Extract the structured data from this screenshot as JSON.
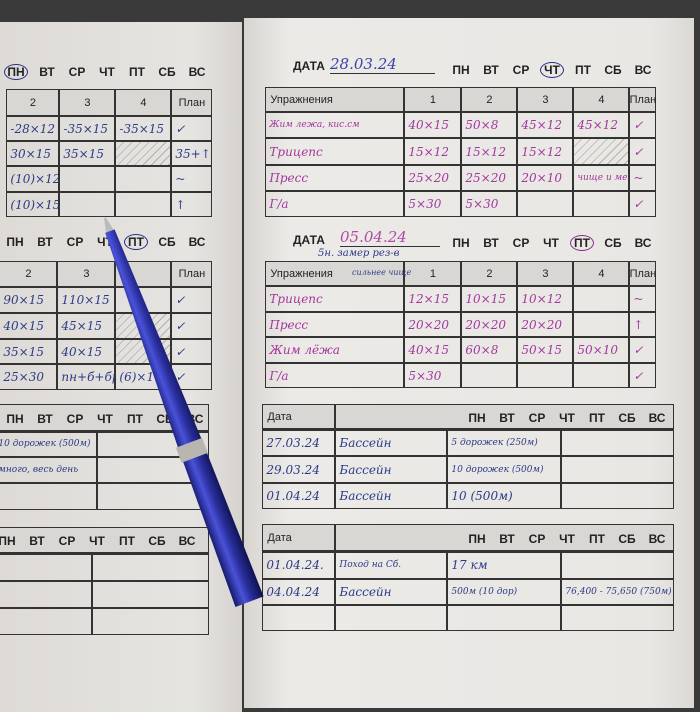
{
  "days": [
    "ПН",
    "ВТ",
    "СР",
    "ЧТ",
    "ПТ",
    "СБ",
    "ВС"
  ],
  "date_label": "ДАТА",
  "left_page": {
    "section1": {
      "circled_day": "ПН",
      "headers": [
        "2",
        "3",
        "4",
        "План"
      ],
      "rows": [
        [
          "-28×12",
          "-35×15",
          "-35×15",
          "✓"
        ],
        [
          "30×15",
          "35×15",
          "",
          "35+↑"
        ],
        [
          "(10)×12",
          "",
          "",
          "~"
        ],
        [
          "(10)×15",
          "",
          "",
          "↑"
        ]
      ]
    },
    "section2": {
      "circled_day": "ПТ",
      "headers": [
        "2",
        "3",
        "",
        "План"
      ],
      "rows": [
        [
          "90×15",
          "110×15",
          "",
          "✓"
        ],
        [
          "40×15",
          "45×15",
          "",
          "✓"
        ],
        [
          "35×15",
          "40×15",
          "",
          "✓"
        ],
        [
          "25×30",
          "пн+б+бр",
          "(6)×1",
          "✓"
        ]
      ]
    },
    "section3": {
      "rows": [
        [
          "10 дорожек (500м)",
          ""
        ],
        [
          "много, весь день",
          ""
        ],
        [
          "",
          ""
        ]
      ]
    },
    "section4": {
      "rows": [
        [
          "",
          ""
        ],
        [
          "",
          ""
        ],
        [
          "",
          ""
        ]
      ]
    }
  },
  "right_page": {
    "workout1": {
      "date": "28.03.24",
      "circled_day": "ЧТ",
      "headers": [
        "Упражнения",
        "1",
        "2",
        "3",
        "4",
        "План"
      ],
      "rows": [
        [
          "Жим лежа, кис.см",
          "40×15",
          "50×8",
          "45×12",
          "45×12",
          "✓"
        ],
        [
          "Трицепс",
          "15×12",
          "15×12",
          "15×12",
          "",
          "✓"
        ],
        [
          "Пресс",
          "25×20",
          "25×20",
          "20×10",
          "чище и меньше",
          "~"
        ],
        [
          "Г/а",
          "5×30",
          "5×30",
          "",
          "",
          "✓"
        ]
      ]
    },
    "workout2": {
      "date": "05.04.24",
      "circled_day": "ПТ",
      "note": "5н. замер рез-в",
      "header_note": "сильнее чище",
      "headers": [
        "Упражнения",
        "1",
        "2",
        "3",
        "4",
        "План"
      ],
      "rows": [
        [
          "Трицепс",
          "12×15",
          "10×15",
          "10×12",
          "",
          "~"
        ],
        [
          "Пресс",
          "20×20",
          "20×20",
          "20×20",
          "",
          "↑"
        ],
        [
          "Жим лёжа",
          "40×15",
          "60×8",
          "50×15",
          "50×10",
          "✓"
        ],
        [
          "Г/а",
          "5×30",
          "",
          "",
          "",
          "✓"
        ]
      ]
    },
    "activity1": {
      "header": "Дата",
      "rows": [
        [
          "27.03.24",
          "Бассейн",
          "5 дорожек (250м)",
          ""
        ],
        [
          "29.03.24",
          "Бассейн",
          "10 дорожек (500м)",
          ""
        ],
        [
          "01.04.24",
          "Бассейн",
          "10 (500м)",
          ""
        ]
      ]
    },
    "activity2": {
      "header": "Дата",
      "rows": [
        [
          "01.04.24.",
          "Поход на Сб.",
          "17 км",
          ""
        ],
        [
          "04.04.24",
          "Бассейн",
          "500м (10 дор)",
          "76,400 - 75,650 (750м)"
        ],
        [
          "",
          "",
          "",
          ""
        ]
      ]
    }
  },
  "colors": {
    "pen_blue": "#2a2f9e",
    "ink_purple": "#a3379d",
    "ink_blue": "#2c3a86",
    "paper": "#e7e5e2"
  }
}
